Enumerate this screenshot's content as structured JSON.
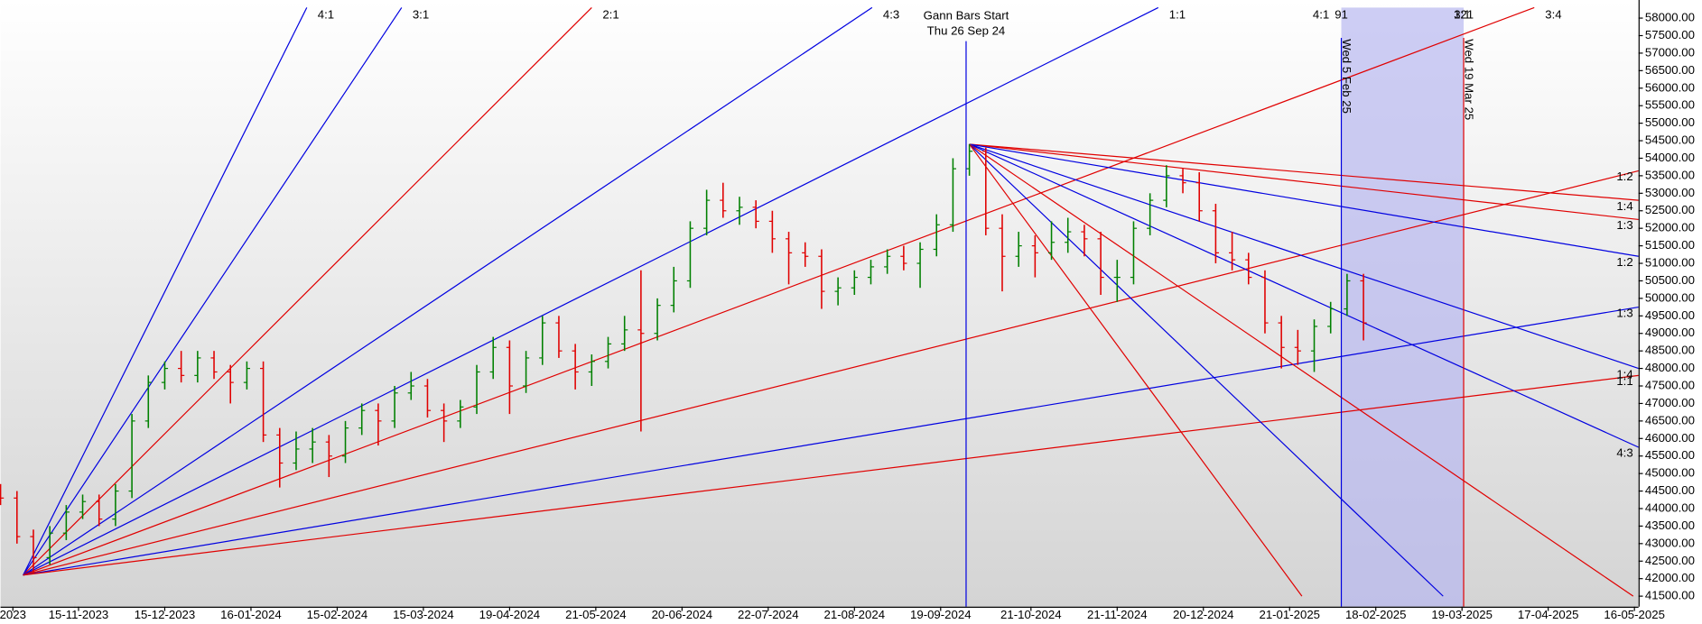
{
  "chart_data": {
    "type": "ohlc",
    "xlim": [
      -19,
      380
    ],
    "ylim": [
      41200,
      58300
    ],
    "xticks": [
      {
        "value": -16,
        "label": "2023"
      },
      {
        "value": 0,
        "label": "15-11-2023"
      },
      {
        "value": 21,
        "label": "15-12-2023"
      },
      {
        "value": 42,
        "label": "16-01-2024"
      },
      {
        "value": 63,
        "label": "15-02-2024"
      },
      {
        "value": 84,
        "label": "15-03-2024"
      },
      {
        "value": 105,
        "label": "19-04-2024"
      },
      {
        "value": 126,
        "label": "21-05-2024"
      },
      {
        "value": 147,
        "label": "20-06-2024"
      },
      {
        "value": 168,
        "label": "22-07-2024"
      },
      {
        "value": 189,
        "label": "21-08-2024"
      },
      {
        "value": 210,
        "label": "19-09-2024"
      },
      {
        "value": 232,
        "label": "21-10-2024"
      },
      {
        "value": 253,
        "label": "21-11-2024"
      },
      {
        "value": 274,
        "label": "20-12-2024"
      },
      {
        "value": 295,
        "label": "21-01-2025"
      },
      {
        "value": 316,
        "label": "18-02-2025"
      },
      {
        "value": 337,
        "label": "19-03-2025"
      },
      {
        "value": 358,
        "label": "17-04-2025"
      },
      {
        "value": 379,
        "label": "16-05-2025"
      }
    ],
    "yticks": [
      {
        "value": 41500,
        "label": "41500.00"
      },
      {
        "value": 42000,
        "label": "42000.00"
      },
      {
        "value": 42500,
        "label": "42500.00"
      },
      {
        "value": 43000,
        "label": "43000.00"
      },
      {
        "value": 43500,
        "label": "43500.00"
      },
      {
        "value": 44000,
        "label": "44000.00"
      },
      {
        "value": 44500,
        "label": "44500.00"
      },
      {
        "value": 45000,
        "label": "45000.00"
      },
      {
        "value": 45500,
        "label": "45500.00"
      },
      {
        "value": 46000,
        "label": "46000.00"
      },
      {
        "value": 46500,
        "label": "46500.00"
      },
      {
        "value": 47000,
        "label": "47000.00"
      },
      {
        "value": 47500,
        "label": "47500.00"
      },
      {
        "value": 48000,
        "label": "48000.00"
      },
      {
        "value": 48500,
        "label": "48500.00"
      },
      {
        "value": 49000,
        "label": "49000.00"
      },
      {
        "value": 49500,
        "label": "49500.00"
      },
      {
        "value": 50000,
        "label": "50000.00"
      },
      {
        "value": 50500,
        "label": "50500.00"
      },
      {
        "value": 51000,
        "label": "51000.00"
      },
      {
        "value": 51500,
        "label": "51500.00"
      },
      {
        "value": 52000,
        "label": "52000.00"
      },
      {
        "value": 52500,
        "label": "52500.00"
      },
      {
        "value": 53000,
        "label": "53000.00"
      },
      {
        "value": 53500,
        "label": "53500.00"
      },
      {
        "value": 54000,
        "label": "54000.00"
      },
      {
        "value": 54500,
        "label": "54500.00"
      },
      {
        "value": 55000,
        "label": "55000.00"
      },
      {
        "value": 55500,
        "label": "55500.00"
      },
      {
        "value": 56000,
        "label": "56000.00"
      },
      {
        "value": 56500,
        "label": "56500.00"
      },
      {
        "value": 57000,
        "label": "57000.00"
      },
      {
        "value": 57500,
        "label": "57500.00"
      },
      {
        "value": 58000,
        "label": "58000.00"
      }
    ],
    "up_color": "#008000",
    "down_color": "#e00000",
    "x": [
      -19,
      -15,
      -11,
      -7,
      -3,
      1,
      5,
      9,
      13,
      17,
      21,
      25,
      29,
      33,
      37,
      41,
      45,
      49,
      53,
      57,
      61,
      65,
      69,
      73,
      77,
      81,
      85,
      89,
      93,
      97,
      101,
      105,
      109,
      113,
      117,
      121,
      125,
      129,
      133,
      137,
      141,
      145,
      149,
      153,
      157,
      161,
      165,
      169,
      173,
      177,
      181,
      185,
      189,
      193,
      197,
      201,
      205,
      209,
      213,
      217,
      221,
      225,
      229,
      233,
      237,
      241,
      245,
      249,
      253,
      257,
      261,
      265,
      269,
      273,
      277,
      281,
      285,
      289,
      293,
      297,
      301,
      305,
      309,
      313
    ],
    "ohlc": [
      [
        44500,
        44700,
        44100,
        44300
      ],
      [
        44300,
        44500,
        43000,
        43200
      ],
      [
        43200,
        43400,
        42150,
        42600
      ],
      [
        42600,
        43500,
        42400,
        43300
      ],
      [
        43300,
        44100,
        43100,
        43900
      ],
      [
        43900,
        44400,
        43700,
        44200
      ],
      [
        44200,
        44400,
        43500,
        43700
      ],
      [
        43700,
        44700,
        43500,
        44500
      ],
      [
        44500,
        46700,
        44300,
        46500
      ],
      [
        46500,
        47800,
        46300,
        47600
      ],
      [
        47600,
        48200,
        47400,
        48000
      ],
      [
        48000,
        48500,
        47600,
        47800
      ],
      [
        47800,
        48500,
        47600,
        48300
      ],
      [
        48300,
        48500,
        47700,
        47900
      ],
      [
        47900,
        48100,
        47000,
        47600
      ],
      [
        47600,
        48200,
        47400,
        48000
      ],
      [
        48000,
        48200,
        45900,
        46100
      ],
      [
        46100,
        46300,
        44600,
        45300
      ],
      [
        45300,
        46200,
        45100,
        45700
      ],
      [
        45700,
        46300,
        45300,
        45900
      ],
      [
        45900,
        46100,
        44900,
        45500
      ],
      [
        45500,
        46500,
        45300,
        46300
      ],
      [
        46300,
        47000,
        46100,
        46800
      ],
      [
        46800,
        47000,
        45800,
        46500
      ],
      [
        46500,
        47500,
        46300,
        47300
      ],
      [
        47300,
        47900,
        47100,
        47500
      ],
      [
        47500,
        47700,
        46600,
        46800
      ],
      [
        46800,
        47000,
        45900,
        46500
      ],
      [
        46500,
        47100,
        46300,
        46900
      ],
      [
        46900,
        48100,
        46700,
        47900
      ],
      [
        47900,
        48900,
        47700,
        48600
      ],
      [
        48600,
        48800,
        46700,
        47500
      ],
      [
        47500,
        48500,
        47300,
        48300
      ],
      [
        48300,
        49500,
        48100,
        49300
      ],
      [
        49300,
        49500,
        48300,
        48500
      ],
      [
        48500,
        48700,
        47400,
        47900
      ],
      [
        47900,
        48400,
        47500,
        48200
      ],
      [
        48200,
        48900,
        48000,
        48700
      ],
      [
        48700,
        49500,
        48500,
        49100
      ],
      [
        49100,
        50800,
        46200,
        49000
      ],
      [
        49000,
        50000,
        48800,
        49800
      ],
      [
        49800,
        50900,
        49600,
        50500
      ],
      [
        50500,
        52200,
        50300,
        52000
      ],
      [
        52000,
        53100,
        51800,
        52800
      ],
      [
        52800,
        53300,
        52300,
        52500
      ],
      [
        52500,
        52900,
        52100,
        52600
      ],
      [
        52600,
        52800,
        52000,
        52200
      ],
      [
        52200,
        52500,
        51300,
        51700
      ],
      [
        51700,
        51900,
        50400,
        51300
      ],
      [
        51300,
        51600,
        50900,
        51200
      ],
      [
        51200,
        51400,
        49700,
        50200
      ],
      [
        50200,
        50600,
        49800,
        50300
      ],
      [
        50300,
        50800,
        50100,
        50600
      ],
      [
        50600,
        51100,
        50400,
        50900
      ],
      [
        50900,
        51400,
        50700,
        51200
      ],
      [
        51200,
        51500,
        50800,
        51000
      ],
      [
        51000,
        51600,
        50300,
        51400
      ],
      [
        51400,
        52400,
        51200,
        52100
      ],
      [
        52100,
        54000,
        51900,
        53700
      ],
      [
        53700,
        54400,
        53500,
        54200
      ],
      [
        54200,
        54300,
        51800,
        52000
      ],
      [
        52000,
        52400,
        50200,
        51200
      ],
      [
        51200,
        51900,
        50900,
        51500
      ],
      [
        51500,
        51800,
        50600,
        51300
      ],
      [
        51300,
        52200,
        51100,
        51600
      ],
      [
        51600,
        52300,
        51300,
        51900
      ],
      [
        51900,
        52100,
        51200,
        51700
      ],
      [
        51700,
        51900,
        50100,
        50600
      ],
      [
        50600,
        51100,
        49900,
        50600
      ],
      [
        50600,
        52200,
        50400,
        52000
      ],
      [
        52000,
        53000,
        51800,
        52800
      ],
      [
        52800,
        53800,
        52600,
        53500
      ],
      [
        53500,
        53700,
        53000,
        53300
      ],
      [
        53300,
        53600,
        52200,
        52500
      ],
      [
        52500,
        52700,
        51000,
        51300
      ],
      [
        51300,
        51900,
        50800,
        51100
      ],
      [
        51100,
        51300,
        50400,
        50600
      ],
      [
        50600,
        50800,
        49000,
        49300
      ],
      [
        49300,
        49500,
        48000,
        48600
      ],
      [
        48600,
        49100,
        48100,
        48500
      ],
      [
        48500,
        49400,
        47900,
        49200
      ],
      [
        49200,
        49900,
        49000,
        49700
      ],
      [
        49700,
        50700,
        49500,
        50500
      ],
      [
        50500,
        50700,
        48800,
        49300
      ]
    ],
    "gann_lines": [
      {
        "x": [
          -13.5,
          55.6
        ],
        "y": [
          42100,
          58300
        ],
        "color": "#0000e0",
        "label": "4:1"
      },
      {
        "x": [
          -13.5,
          78.7
        ],
        "y": [
          42100,
          58300
        ],
        "color": "#0000e0",
        "label": "3:1"
      },
      {
        "x": [
          -13.5,
          125
        ],
        "y": [
          42100,
          58300
        ],
        "color": "#e00000",
        "label": "2:1"
      },
      {
        "x": [
          -13.5,
          193.3
        ],
        "y": [
          42100,
          58300
        ],
        "color": "#0000e0",
        "label": "4:3"
      },
      {
        "x": [
          -13.5,
          263
        ],
        "y": [
          42100,
          58300
        ],
        "color": "#0000e0",
        "label": "1:1"
      },
      {
        "x": [
          -13.5,
          354.6
        ],
        "y": [
          42100,
          58300
        ],
        "color": "#e00000",
        "label": "3:4"
      },
      {
        "x": [
          -13.5,
          380
        ],
        "y": [
          42100,
          53640
        ],
        "color": "#e00000",
        "label": "1:2"
      },
      {
        "x": [
          -13.5,
          380
        ],
        "y": [
          42100,
          49750
        ],
        "color": "#0000e0",
        "label": "1:3"
      },
      {
        "x": [
          -13.5,
          380
        ],
        "y": [
          42100,
          47800
        ],
        "color": "#e00000",
        "label": "1:1"
      },
      {
        "x": [
          217,
          380
        ],
        "y": [
          54400,
          52800
        ],
        "color": "#e00000",
        "label": "1:4"
      },
      {
        "x": [
          217,
          380
        ],
        "y": [
          54400,
          52250
        ],
        "color": "#e00000",
        "label": "1:3"
      },
      {
        "x": [
          217,
          380
        ],
        "y": [
          54400,
          51200
        ],
        "color": "#0000e0",
        "label": "1:2"
      },
      {
        "x": [
          217,
          380
        ],
        "y": [
          54400,
          48000
        ],
        "color": "#0000e0",
        "label": "1:4"
      },
      {
        "x": [
          217,
          380
        ],
        "y": [
          54400,
          45750
        ],
        "color": "#0000e0",
        "label": "4:3"
      },
      {
        "x": [
          217,
          378.7
        ],
        "y": [
          54400,
          41500
        ],
        "color": "#e00000"
      },
      {
        "x": [
          217,
          332.4
        ],
        "y": [
          54400,
          41500
        ],
        "color": "#0000e0",
        "label": "3:1"
      },
      {
        "x": [
          217,
          298
        ],
        "y": [
          54400,
          41500
        ],
        "color": "#e00000",
        "label": "4:1"
      }
    ],
    "gann_start": {
      "x": 216.2,
      "label": "Gann Bars Start",
      "date": "Thu 26 Sep 24",
      "color": "#0000e0"
    },
    "time_window": {
      "x": [
        307.6,
        337.4
      ],
      "counts": [
        91,
        121
      ],
      "dates": [
        "Wed 5 Feb 25",
        "Wed 19 Mar 25"
      ],
      "colors": [
        "#0000e0",
        "#e00000"
      ],
      "fill": "#b8b8f0"
    }
  }
}
